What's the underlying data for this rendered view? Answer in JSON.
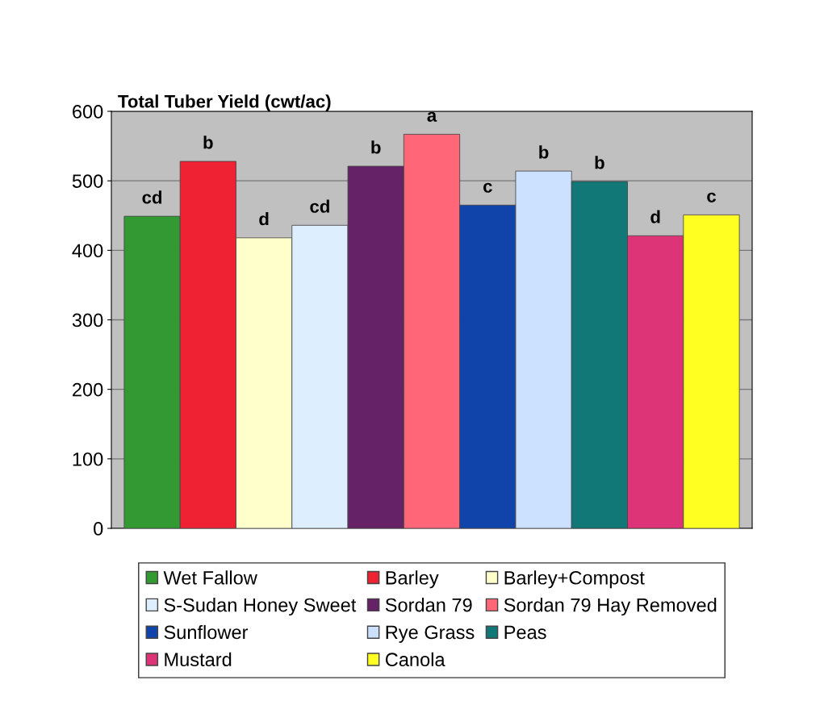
{
  "chart_data": {
    "type": "bar",
    "title": "Total Tuber Yield (cwt/ac)",
    "categories": [
      null
    ],
    "series": [
      {
        "name": "Wet Fallow",
        "color": "#339933",
        "values": [
          449
        ],
        "value_labels": [
          "cd"
        ]
      },
      {
        "name": "Barley",
        "color": "#ee2233",
        "values": [
          528
        ],
        "value_labels": [
          "b"
        ]
      },
      {
        "name": "Barley+Compost",
        "color": "#ffffcc",
        "values": [
          418
        ],
        "value_labels": [
          "d"
        ]
      },
      {
        "name": "S-Sudan Honey Sweet",
        "color": "#ddeeff",
        "values": [
          436
        ],
        "value_labels": [
          "cd"
        ]
      },
      {
        "name": "Sordan 79",
        "color": "#662266",
        "values": [
          521
        ],
        "value_labels": [
          "b"
        ]
      },
      {
        "name": "Sordan 79 Hay Removed",
        "color": "#ff6677",
        "values": [
          567
        ],
        "value_labels": [
          "a"
        ]
      },
      {
        "name": "Sunflower",
        "color": "#1144aa",
        "values": [
          465
        ],
        "value_labels": [
          "c"
        ]
      },
      {
        "name": "Rye Grass",
        "color": "#cce0ff",
        "values": [
          514
        ],
        "value_labels": [
          "b"
        ]
      },
      {
        "name": "Peas",
        "color": "#117777",
        "values": [
          499
        ],
        "value_labels": [
          "b"
        ]
      },
      {
        "name": "Mustard",
        "color": "#dd3377",
        "values": [
          421
        ],
        "value_labels": [
          "d"
        ]
      },
      {
        "name": "Canola",
        "color": "#ffff22",
        "values": [
          451
        ],
        "value_labels": [
          "c"
        ]
      }
    ],
    "ylim": [
      0,
      600
    ],
    "yticks": [
      0,
      100,
      200,
      300,
      400,
      500,
      600
    ],
    "grid": "y",
    "legend": "bottom"
  }
}
